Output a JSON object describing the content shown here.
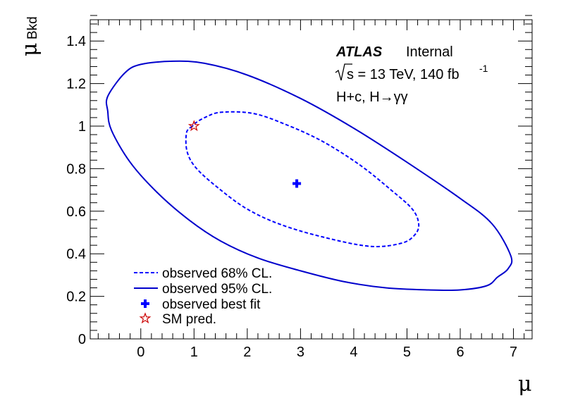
{
  "chart_data": {
    "type": "contour",
    "xlabel": "μ",
    "ylabel": "μ",
    "ylabel_sub": "Bkd",
    "xlim": [
      -0.95,
      7.35
    ],
    "ylim": [
      0,
      1.5
    ],
    "xticks": [
      "0",
      "1",
      "2",
      "3",
      "4",
      "5",
      "6",
      "7"
    ],
    "xtick_values": [
      0,
      1,
      2,
      3,
      4,
      5,
      6,
      7
    ],
    "yticks": [
      "0",
      "0.2",
      "0.4",
      "0.6",
      "0.8",
      "1",
      "1.2",
      "1.4"
    ],
    "ytick_values": [
      0,
      0.2,
      0.4,
      0.6,
      0.8,
      1.0,
      1.2,
      1.4
    ],
    "annotations": {
      "experiment": "ATLAS",
      "status": "Internal",
      "energy_prefix": "s = 13 TeV, 140 fb",
      "energy_sup": "-1",
      "process": "H+c, H→γγ"
    },
    "series": [
      {
        "name": "observed 68% CL.",
        "style": "dashed",
        "color": "#0000ff",
        "points": [
          [
            0.97,
            1.0
          ],
          [
            0.86,
            0.97
          ],
          [
            0.87,
            0.88
          ],
          [
            1.05,
            0.8
          ],
          [
            1.5,
            0.7
          ],
          [
            2.0,
            0.61
          ],
          [
            2.6,
            0.54
          ],
          [
            3.4,
            0.48
          ],
          [
            4.3,
            0.435
          ],
          [
            4.9,
            0.45
          ],
          [
            5.15,
            0.49
          ],
          [
            5.22,
            0.54
          ],
          [
            5.1,
            0.61
          ],
          [
            4.7,
            0.7
          ],
          [
            4.1,
            0.82
          ],
          [
            3.4,
            0.93
          ],
          [
            2.7,
            1.01
          ],
          [
            2.1,
            1.06
          ],
          [
            1.5,
            1.065
          ],
          [
            1.2,
            1.04
          ],
          [
            1.0,
            1.01
          ],
          [
            0.97,
            1.0
          ]
        ]
      },
      {
        "name": "observed 95% CL.",
        "style": "solid",
        "color": "#0000cc",
        "points": [
          [
            -0.62,
            1.14
          ],
          [
            -0.3,
            1.25
          ],
          [
            0.0,
            1.29
          ],
          [
            0.6,
            1.305
          ],
          [
            1.2,
            1.295
          ],
          [
            2.0,
            1.24
          ],
          [
            3.0,
            1.13
          ],
          [
            4.0,
            0.99
          ],
          [
            5.0,
            0.83
          ],
          [
            6.0,
            0.66
          ],
          [
            6.6,
            0.54
          ],
          [
            6.95,
            0.39
          ],
          [
            6.9,
            0.33
          ],
          [
            6.7,
            0.29
          ],
          [
            6.5,
            0.25
          ],
          [
            6.0,
            0.23
          ],
          [
            5.4,
            0.23
          ],
          [
            4.6,
            0.24
          ],
          [
            3.8,
            0.27
          ],
          [
            3.0,
            0.32
          ],
          [
            2.2,
            0.38
          ],
          [
            1.5,
            0.46
          ],
          [
            0.9,
            0.56
          ],
          [
            0.3,
            0.69
          ],
          [
            -0.2,
            0.83
          ],
          [
            -0.55,
            0.98
          ],
          [
            -0.62,
            1.07
          ],
          [
            -0.62,
            1.14
          ]
        ]
      },
      {
        "name": "observed best fit",
        "marker": "cross",
        "color": "#0000ff",
        "x": 2.93,
        "y": 0.73
      },
      {
        "name": "SM pred.",
        "marker": "open-star",
        "color": "#cc0000",
        "x": 1.0,
        "y": 1.0
      }
    ]
  }
}
